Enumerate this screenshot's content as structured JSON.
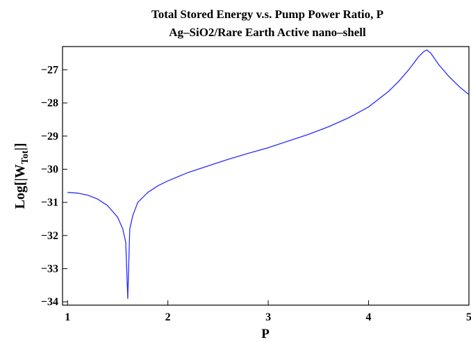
{
  "chart_data": {
    "type": "line",
    "title_line1": "Total Stored Energy  v.s.  Pump Power Ratio,   P",
    "title_line2": "Ag–SiO2/Rare Earth Active nano–shell",
    "xlabel": "P",
    "ylabel": {
      "prefix": "Log[|W",
      "subscript": "Tot",
      "suffix": "|]"
    },
    "xlim": [
      0.95,
      5.0
    ],
    "ylim": [
      -34.1,
      -26.3
    ],
    "xticks": [
      1,
      2,
      3,
      4,
      5
    ],
    "yticks": [
      -34,
      -33,
      -32,
      -31,
      -30,
      -29,
      -28,
      -27
    ],
    "grid": false,
    "line_color": "#2b2bff",
    "series": [
      {
        "x": [
          1.0,
          1.1,
          1.2,
          1.3,
          1.4,
          1.5,
          1.55,
          1.58,
          1.6,
          1.62,
          1.65,
          1.7,
          1.8,
          1.9,
          2.0,
          2.2,
          2.4,
          2.6,
          2.8,
          3.0,
          3.2,
          3.4,
          3.6,
          3.8,
          4.0,
          4.2,
          4.3,
          4.4,
          4.5,
          4.55,
          4.58,
          4.62,
          4.7,
          4.8,
          4.9,
          5.0
        ],
        "y": [
          -30.7,
          -30.72,
          -30.78,
          -30.9,
          -31.1,
          -31.45,
          -31.8,
          -32.2,
          -33.9,
          -31.8,
          -31.4,
          -31.0,
          -30.7,
          -30.5,
          -30.35,
          -30.1,
          -29.9,
          -29.7,
          -29.52,
          -29.35,
          -29.15,
          -28.95,
          -28.72,
          -28.45,
          -28.12,
          -27.65,
          -27.35,
          -27.0,
          -26.6,
          -26.45,
          -26.4,
          -26.5,
          -26.85,
          -27.2,
          -27.5,
          -27.75
        ]
      }
    ]
  }
}
